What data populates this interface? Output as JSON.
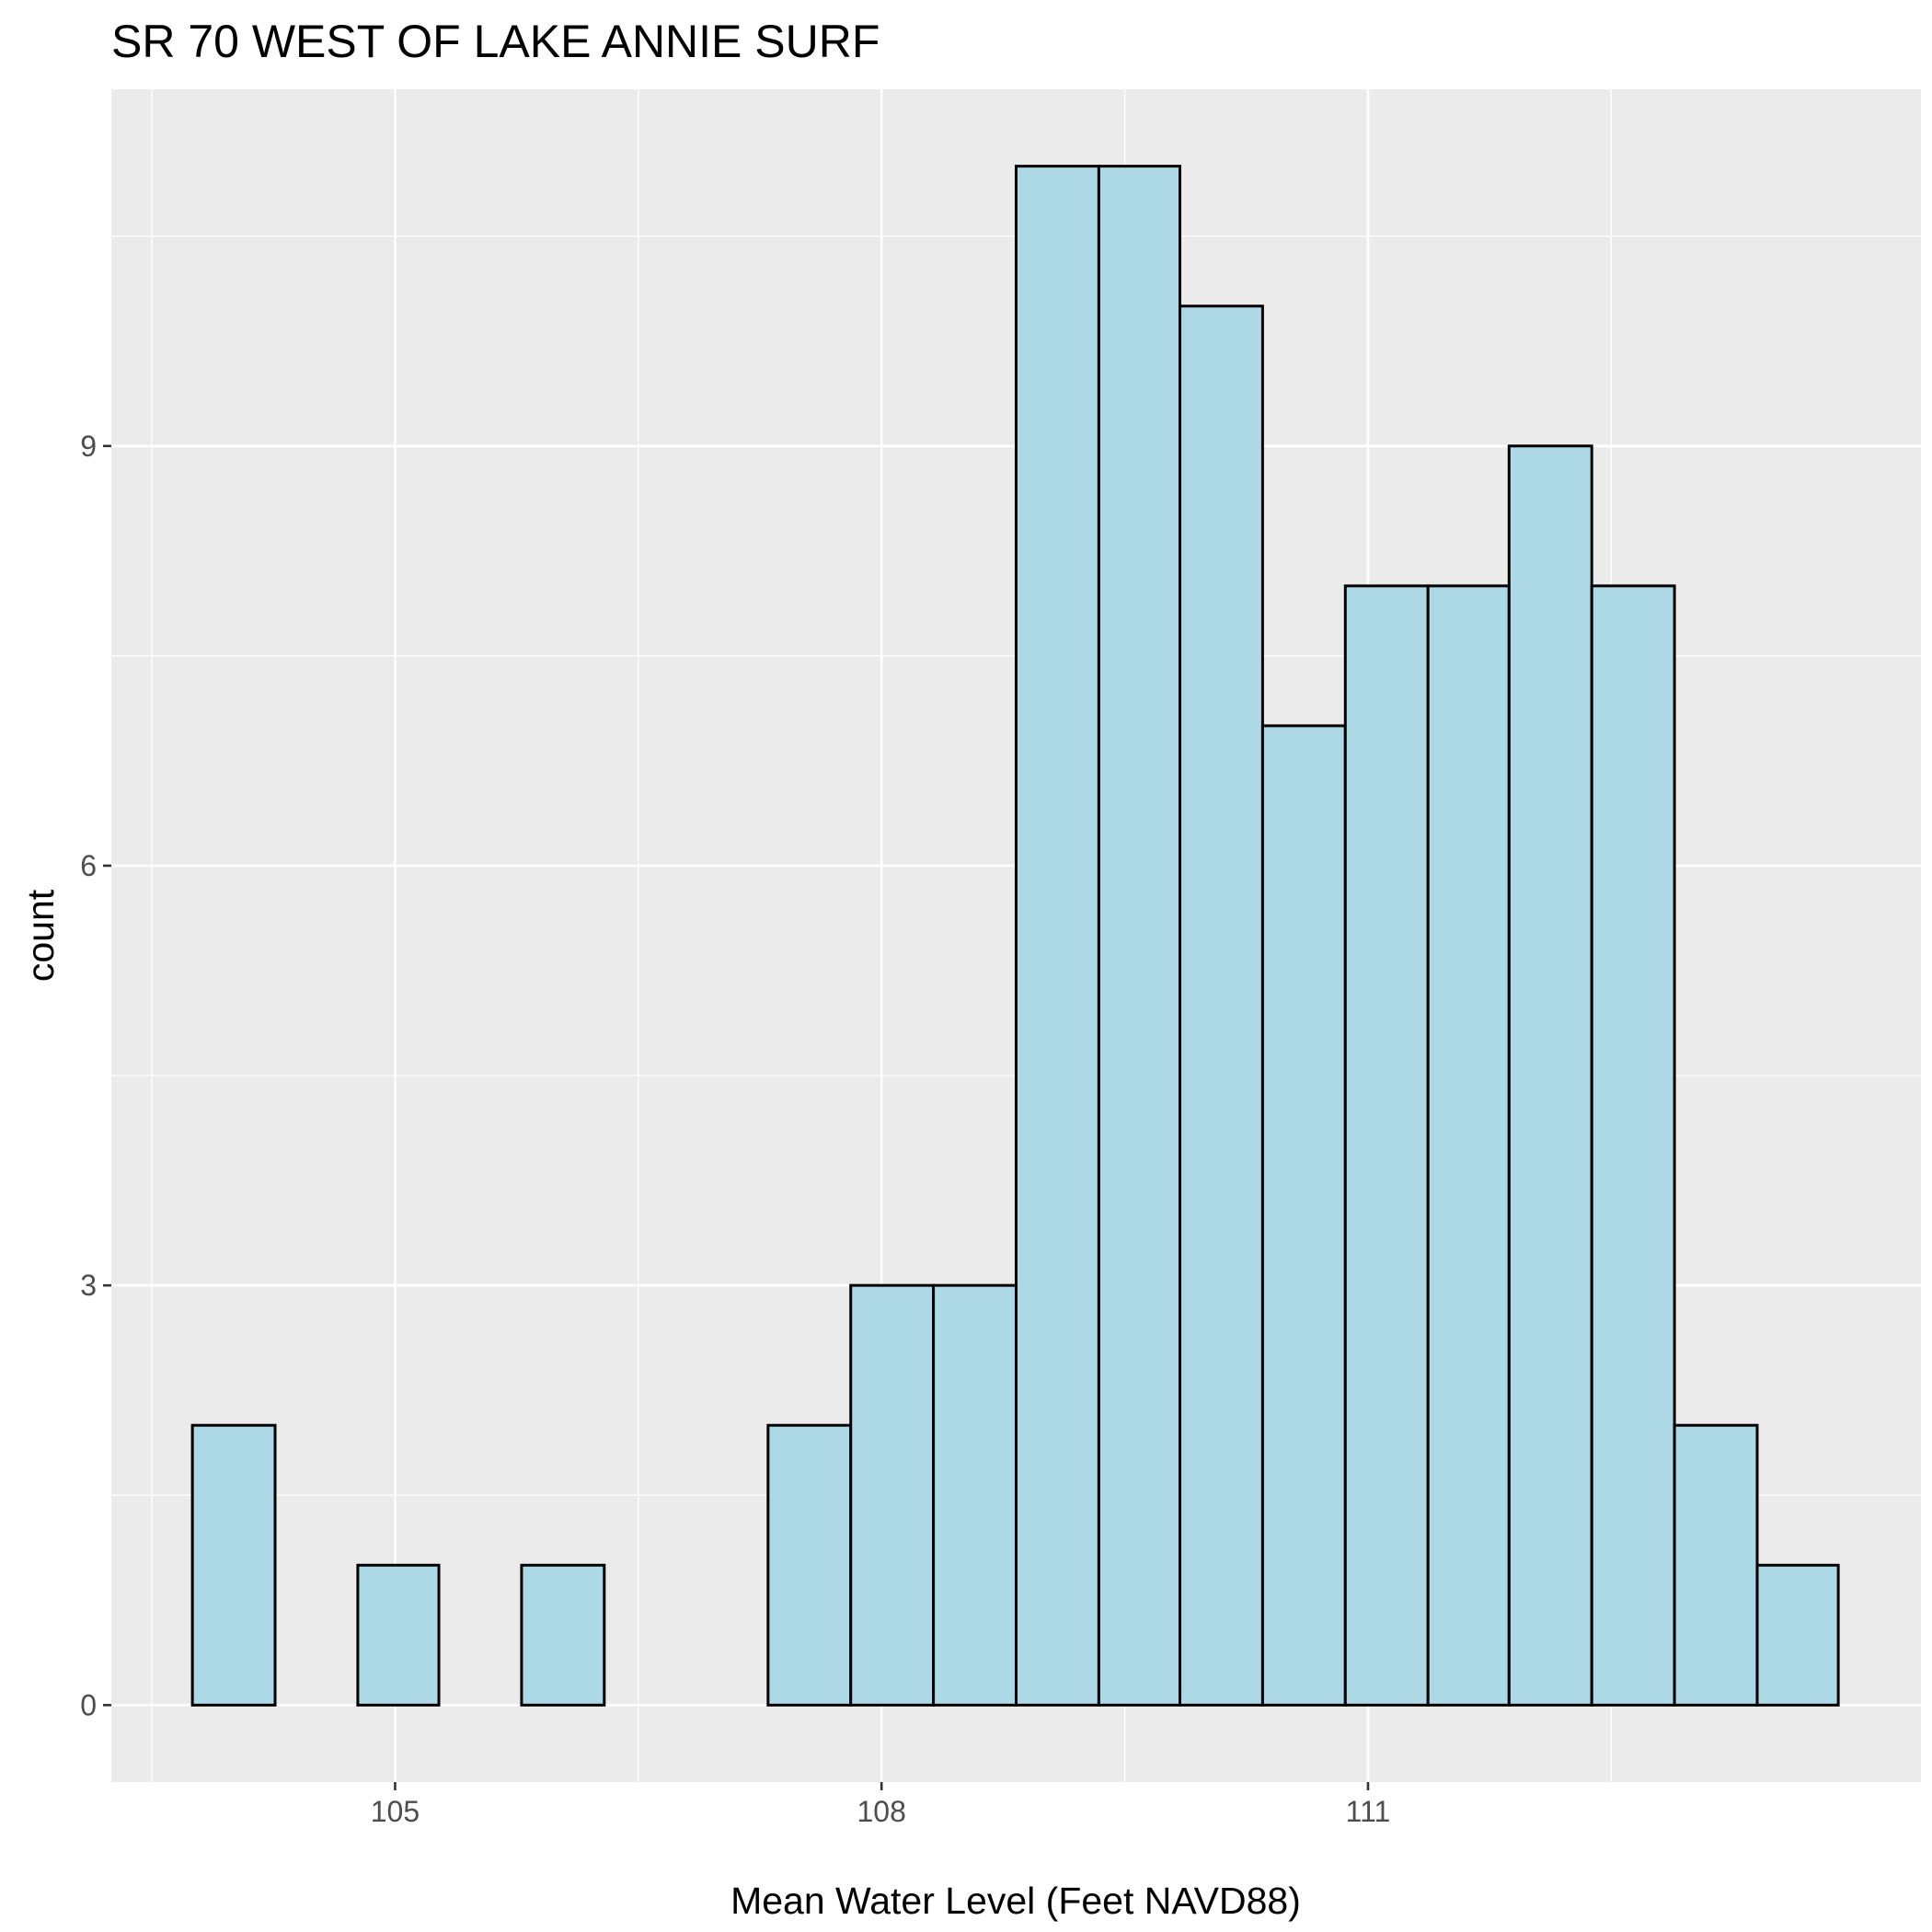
{
  "chart_data": {
    "type": "bar",
    "title": "SR 70 WEST OF LAKE ANNIE SURF",
    "xlabel": "Mean Water Level (Feet NAVD88)",
    "ylabel": "count",
    "bin_width": 0.508,
    "bins": [
      {
        "x0": 103.75,
        "x1": 104.26,
        "count": 2
      },
      {
        "x0": 104.26,
        "x1": 104.77,
        "count": 0
      },
      {
        "x0": 104.77,
        "x1": 105.27,
        "count": 1
      },
      {
        "x0": 105.27,
        "x1": 105.78,
        "count": 0
      },
      {
        "x0": 105.78,
        "x1": 106.29,
        "count": 1
      },
      {
        "x0": 106.29,
        "x1": 106.8,
        "count": 0
      },
      {
        "x0": 106.8,
        "x1": 107.3,
        "count": 0
      },
      {
        "x0": 107.3,
        "x1": 107.81,
        "count": 2
      },
      {
        "x0": 107.81,
        "x1": 108.32,
        "count": 3
      },
      {
        "x0": 108.32,
        "x1": 108.83,
        "count": 3
      },
      {
        "x0": 108.83,
        "x1": 109.34,
        "count": 11
      },
      {
        "x0": 109.34,
        "x1": 109.84,
        "count": 11
      },
      {
        "x0": 109.84,
        "x1": 110.35,
        "count": 10
      },
      {
        "x0": 110.35,
        "x1": 110.86,
        "count": 7
      },
      {
        "x0": 110.86,
        "x1": 111.37,
        "count": 8
      },
      {
        "x0": 111.37,
        "x1": 111.87,
        "count": 8
      },
      {
        "x0": 111.87,
        "x1": 112.38,
        "count": 9
      },
      {
        "x0": 112.38,
        "x1": 112.89,
        "count": 8
      },
      {
        "x0": 112.89,
        "x1": 113.4,
        "count": 2
      },
      {
        "x0": 113.4,
        "x1": 113.9,
        "count": 1
      }
    ],
    "xlim": [
      103.25,
      114.41
    ],
    "ylim": [
      -0.55,
      11.55
    ],
    "x_ticks": [
      105,
      108,
      111
    ],
    "y_ticks": [
      0,
      3,
      6,
      9
    ],
    "grid": true,
    "legend": "none",
    "colors": {
      "bar_fill": "#ADD8E6",
      "bar_stroke": "#000000",
      "panel_bg": "#EBEBEB",
      "grid": "#FFFFFF",
      "tick_text": "#4D4D4D"
    }
  }
}
